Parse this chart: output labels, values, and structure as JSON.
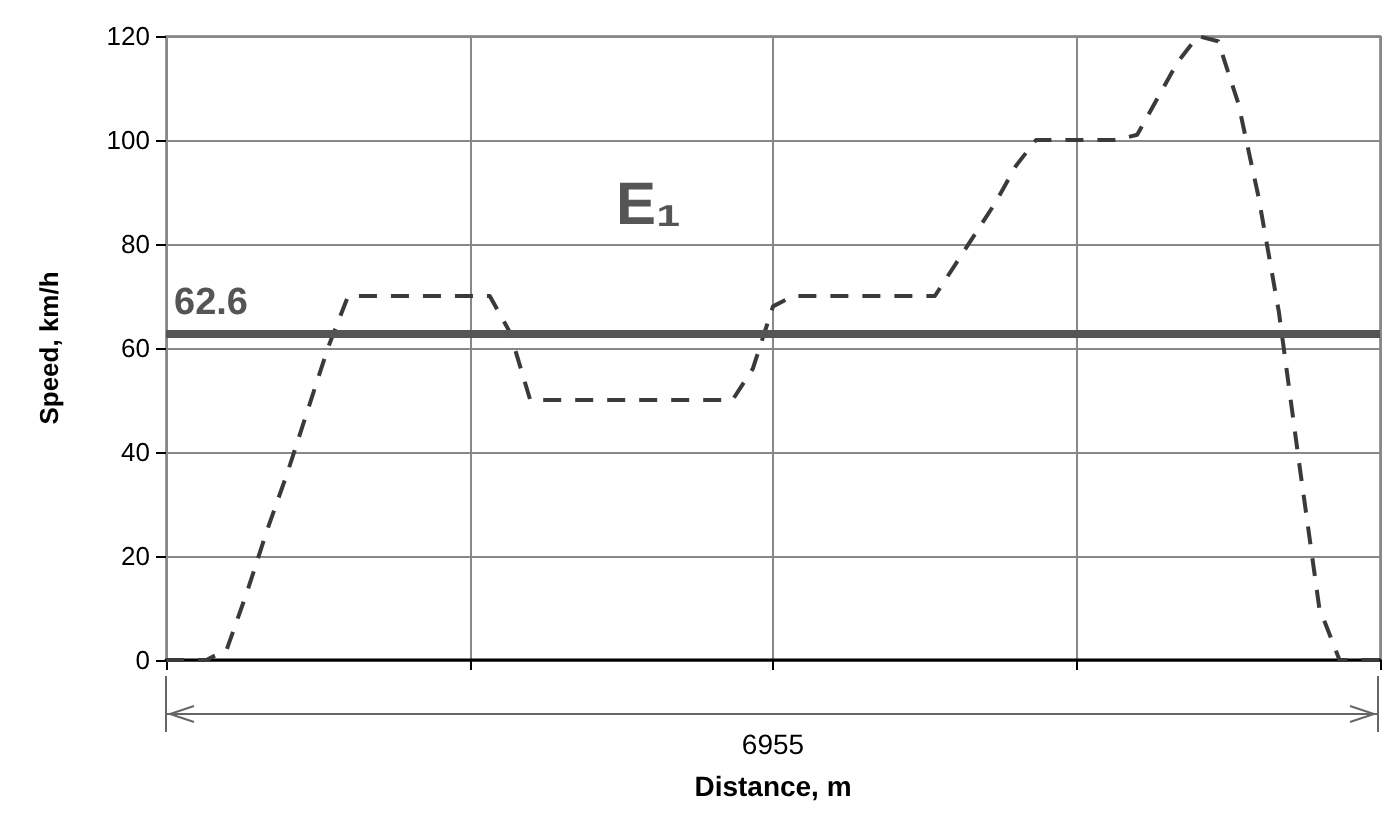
{
  "chart_data": {
    "type": "line",
    "xlabel": "Distance, m",
    "ylabel": "Speed, km/h",
    "categories": [
      null,
      null,
      null,
      null,
      null,
      null,
      null,
      null,
      null,
      null,
      null,
      null,
      null,
      null,
      null,
      null,
      null,
      null,
      null,
      null,
      null,
      null,
      null,
      null,
      null,
      null,
      null,
      null,
      null,
      null,
      null,
      null,
      null,
      null,
      null,
      null,
      null,
      null,
      null,
      null,
      null,
      null,
      null,
      null,
      null,
      null,
      null,
      null,
      null,
      null,
      null,
      null,
      null,
      null,
      null,
      null,
      null,
      null,
      null,
      null,
      null
    ],
    "series": [
      {
        "color": "#3a3a3a",
        "values": [
          0,
          0,
          0,
          2,
          13,
          25,
          36,
          48,
          60,
          70,
          70,
          70,
          70,
          70,
          70,
          70,
          70,
          63,
          50,
          50,
          50,
          50,
          50,
          50,
          50,
          50,
          50,
          50,
          50,
          56,
          68,
          70,
          70,
          70,
          70,
          70,
          70,
          70,
          70,
          76,
          82,
          88,
          95,
          100,
          100,
          100,
          100,
          100,
          101,
          108,
          115,
          120,
          119,
          107,
          89,
          67,
          38,
          10,
          0,
          0,
          0
        ]
      }
    ],
    "ylim": [
      0,
      120
    ],
    "yticks": [
      0,
      20,
      40,
      60,
      80,
      100,
      120
    ],
    "ref_lines": [
      {
        "axis": "y",
        "value": 62.6,
        "label": "62.6",
        "color": "#555555"
      }
    ],
    "annotations": [
      "E₁",
      "6955"
    ],
    "tick_labels": "y",
    "grid": true,
    "marker": "none",
    "line_style": "dashed"
  }
}
